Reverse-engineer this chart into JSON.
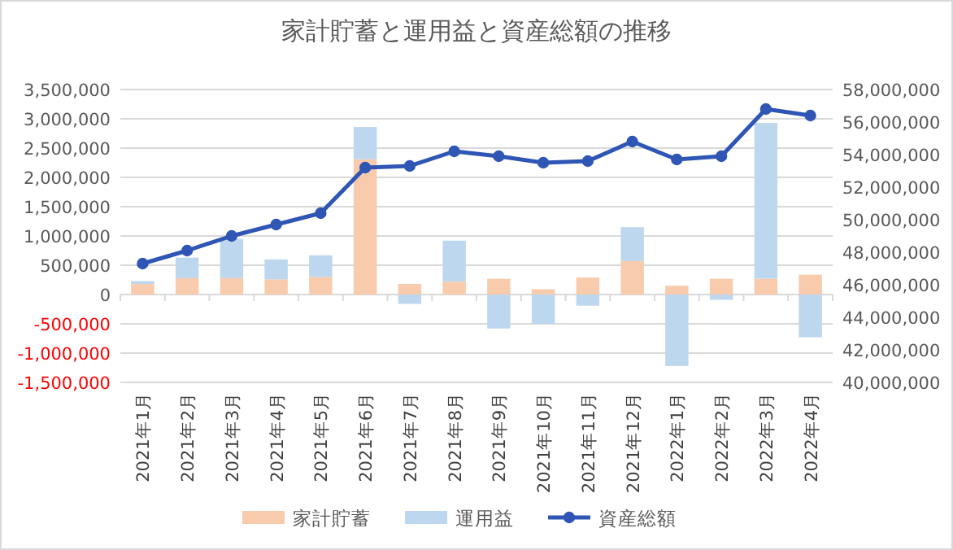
{
  "chart_data": {
    "type": "bar",
    "title": "家計貯蓄と運用益と資産総額の推移",
    "stacked": true,
    "grid": "y",
    "legend": "bottom",
    "categories": [
      "2021年1月",
      "2021年2月",
      "2021年3月",
      "2021年4月",
      "2021年5月",
      "2021年6月",
      "2021年7月",
      "2021年8月",
      "2021年9月",
      "2021年10月",
      "2021年11月",
      "2021年12月",
      "2022年1月",
      "2022年2月",
      "2022年3月",
      "2022年4月"
    ],
    "series": [
      {
        "name": "家計貯蓄",
        "color": "#f8cbad",
        "values": [
          180000,
          280000,
          280000,
          260000,
          300000,
          2310000,
          180000,
          220000,
          270000,
          90000,
          290000,
          570000,
          150000,
          270000,
          270000,
          340000
        ]
      },
      {
        "name": "運用益",
        "color": "#bdd7ee",
        "values": [
          50000,
          350000,
          670000,
          340000,
          370000,
          550000,
          -160000,
          700000,
          -580000,
          -500000,
          -190000,
          580000,
          -1220000,
          -90000,
          2660000,
          -730000
        ]
      },
      {
        "name": "資産総額",
        "type": "line",
        "axis": "y2",
        "marker": "circle",
        "color": "#2f55b5",
        "values": [
          47300000,
          48100000,
          49000000,
          49700000,
          50400000,
          53200000,
          53300000,
          54200000,
          53900000,
          53500000,
          53600000,
          54800000,
          53700000,
          53900000,
          56800000,
          56400000
        ]
      }
    ],
    "ylim": [
      -1500000,
      3500000
    ],
    "yticks": [
      {
        "value": -1500000,
        "label": "-1,500,000"
      },
      {
        "value": -1000000,
        "label": "-1,000,000"
      },
      {
        "value": -500000,
        "label": "-500,000"
      },
      0,
      {
        "value": 500000,
        "label": "500,000"
      },
      {
        "value": 1000000,
        "label": "1,000,000"
      },
      {
        "value": 1500000,
        "label": "1,500,000"
      },
      {
        "value": 2000000,
        "label": "2,000,000"
      },
      {
        "value": 2500000,
        "label": "2,500,000"
      },
      {
        "value": 3000000,
        "label": "3,000,000"
      },
      {
        "value": 3500000,
        "label": "3,500,000"
      }
    ],
    "y2lim": [
      40000000,
      58000000
    ],
    "y2ticks": [
      {
        "value": 40000000,
        "label": "40,000,000"
      },
      {
        "value": 42000000,
        "label": "42,000,000"
      },
      {
        "value": 44000000,
        "label": "44,000,000"
      },
      {
        "value": 46000000,
        "label": "46,000,000"
      },
      {
        "value": 48000000,
        "label": "48,000,000"
      },
      {
        "value": 50000000,
        "label": "50,000,000"
      },
      {
        "value": 52000000,
        "label": "52,000,000"
      },
      {
        "value": 54000000,
        "label": "54,000,000"
      },
      {
        "value": 56000000,
        "label": "56,000,000"
      },
      {
        "value": 58000000,
        "label": "58,000,000"
      }
    ]
  }
}
